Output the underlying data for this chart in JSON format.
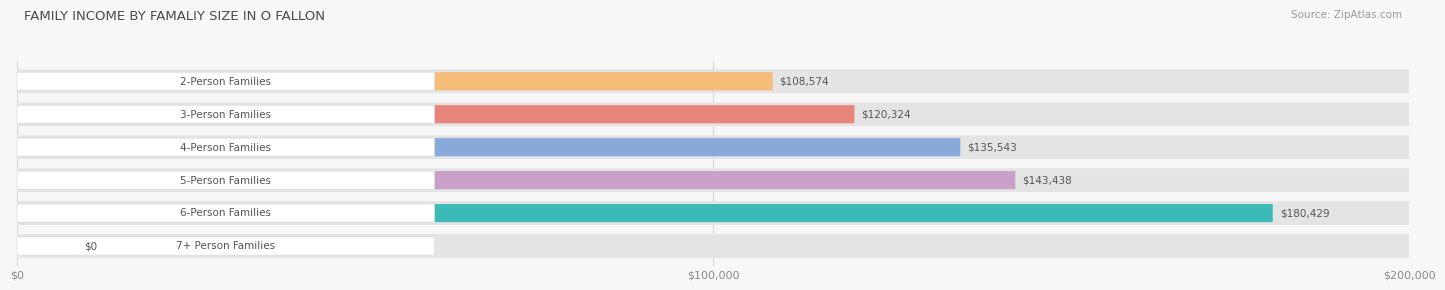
{
  "title": "FAMILY INCOME BY FAMALIY SIZE IN O FALLON",
  "source": "Source: ZipAtlas.com",
  "categories": [
    "2-Person Families",
    "3-Person Families",
    "4-Person Families",
    "5-Person Families",
    "6-Person Families",
    "7+ Person Families"
  ],
  "values": [
    108574,
    120324,
    135543,
    143438,
    180429,
    0
  ],
  "bar_colors": [
    "#F5BC7A",
    "#E8857A",
    "#88AADB",
    "#C9A0C8",
    "#3BBAB8",
    "#C0C4E8"
  ],
  "value_labels": [
    "$108,574",
    "$120,324",
    "$135,543",
    "$143,438",
    "$180,429",
    "$0"
  ],
  "label_colors": [
    "#888888",
    "#ffffff",
    "#ffffff",
    "#ffffff",
    "#ffffff",
    "#555555"
  ],
  "xmax": 200000,
  "xticks": [
    0,
    100000,
    200000
  ],
  "xtick_labels": [
    "$0",
    "$100,000",
    "$200,000"
  ],
  "background_color": "#f7f7f7",
  "bar_bg_color": "#e4e4e4",
  "title_color": "#4a4a4a",
  "source_color": "#999999",
  "label_text_color": "#555555"
}
